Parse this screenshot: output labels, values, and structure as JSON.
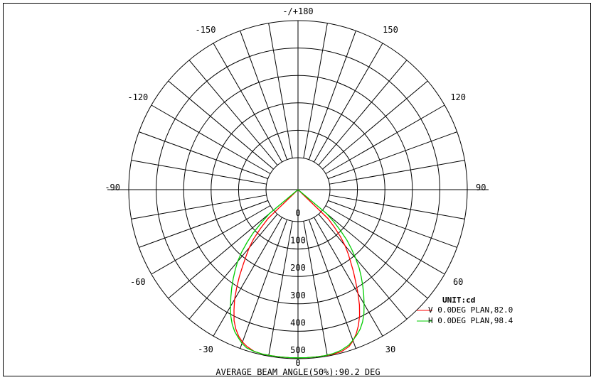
{
  "chart_data": {
    "type": "polar",
    "unit_label": "UNIT:cd",
    "footer": "AVERAGE BEAM ANGLE(50%):90.2 DEG",
    "radial_range": [
      0,
      500
    ],
    "radial_ticks": [
      {
        "value": 0,
        "label": "0"
      },
      {
        "value": 100,
        "label": "100"
      },
      {
        "value": 200,
        "label": "200"
      },
      {
        "value": 300,
        "label": "300"
      },
      {
        "value": 400,
        "label": "400"
      },
      {
        "value": 500,
        "label": "500"
      }
    ],
    "angle_labels": [
      {
        "angle": 180,
        "label": "-/+180"
      },
      {
        "angle": 150,
        "label": "150"
      },
      {
        "angle": -150,
        "label": "-150"
      },
      {
        "angle": 120,
        "label": "120"
      },
      {
        "angle": -120,
        "label": "-120"
      },
      {
        "angle": 90,
        "label": "90"
      },
      {
        "angle": -90,
        "label": "-90"
      },
      {
        "angle": 60,
        "label": "60"
      },
      {
        "angle": -60,
        "label": "-60"
      },
      {
        "angle": 30,
        "label": "30"
      },
      {
        "angle": -30,
        "label": "-30"
      },
      {
        "angle": 0,
        "label": "0"
      }
    ],
    "grid": true,
    "legend_position": "bottom-right",
    "series": [
      {
        "name": "V 0.0DEG PLAN,82.0",
        "marker": "V",
        "color": "#ff0000",
        "angles": [
          -46,
          -44,
          -42,
          -40,
          -38,
          -36,
          -34,
          -32,
          -30,
          -28,
          -26,
          -24,
          -22,
          -20,
          -18,
          -15,
          -12,
          -9,
          -6,
          -3,
          0,
          3,
          6,
          9,
          12,
          15,
          18,
          20,
          22,
          24,
          26,
          28,
          30,
          32,
          34,
          36,
          38,
          40,
          42,
          44,
          46
        ],
        "values": [
          35,
          80,
          125,
          160,
          190,
          225,
          265,
          305,
          345,
          380,
          415,
          440,
          460,
          475,
          485,
          495,
          497,
          497,
          497,
          497,
          497,
          497,
          497,
          497,
          497,
          495,
          485,
          470,
          450,
          425,
          395,
          360,
          320,
          280,
          245,
          210,
          180,
          150,
          115,
          75,
          35
        ]
      },
      {
        "name": "H 0.0DEG PLAN,98.4",
        "marker": "H",
        "color": "#00cc00",
        "angles": [
          -50,
          -48,
          -46,
          -44,
          -42,
          -40,
          -38,
          -36,
          -34,
          -32,
          -30,
          -28,
          -26,
          -24,
          -22,
          -20,
          -18,
          -15,
          -12,
          -9,
          -6,
          -3,
          0,
          3,
          6,
          9,
          12,
          15,
          18,
          20,
          22,
          24,
          26,
          28,
          30,
          32,
          34,
          36,
          38,
          40,
          42,
          44,
          46,
          48,
          50
        ],
        "values": [
          20,
          60,
          110,
          150,
          190,
          225,
          255,
          285,
          315,
          345,
          375,
          405,
          430,
          450,
          465,
          480,
          490,
          495,
          497,
          497,
          497,
          497,
          497,
          497,
          497,
          497,
          495,
          490,
          480,
          468,
          455,
          440,
          420,
          395,
          365,
          335,
          305,
          275,
          245,
          210,
          175,
          140,
          100,
          60,
          20
        ]
      }
    ]
  }
}
